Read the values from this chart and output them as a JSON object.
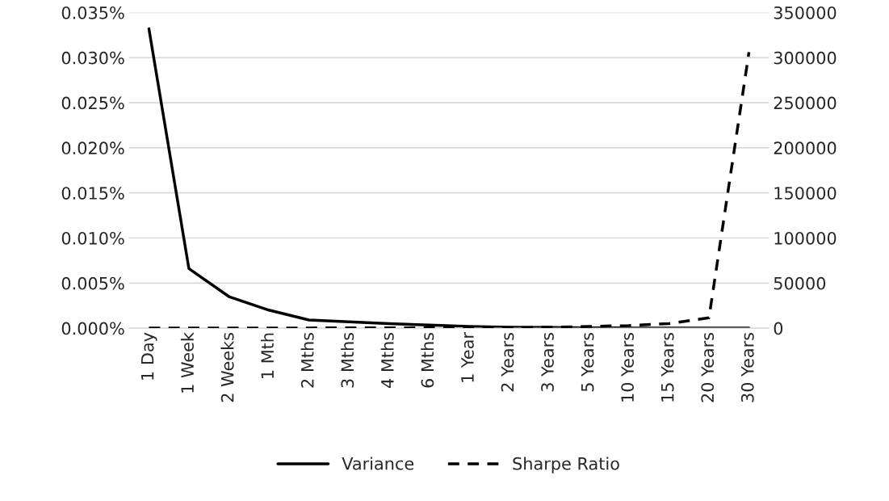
{
  "chart_data": {
    "type": "line",
    "categories": [
      "1 Day",
      "1 Week",
      "2 Weeks",
      "1 Mth",
      "2 Mths",
      "3 Mths",
      "4 Mths",
      "6 Mths",
      "1 Year",
      "2 Years",
      "3 Years",
      "5 Years",
      "10 Years",
      "15 Years",
      "20 Years",
      "30 Years"
    ],
    "series": [
      {
        "name": "Variance",
        "color": "#000000",
        "line_style": "solid",
        "values": [
          0.0332,
          0.0066,
          0.0035,
          0.002,
          0.0009,
          0.0007,
          0.0005,
          0.00035,
          0.0002,
          0.0001,
          7e-05,
          4e-05,
          2e-05,
          1e-05,
          1e-05,
          1e-05
        ]
      },
      {
        "name": "Sharpe Ratio",
        "color": "#000000",
        "line_style": "dashed",
        "axis": "y2",
        "values": [
          0,
          100,
          100,
          200,
          200,
          300,
          300,
          300,
          400,
          500,
          1000,
          1900,
          2900,
          5100,
          11500,
          306000
        ]
      }
    ],
    "ylim": [
      0,
      0.035
    ],
    "yticks": [
      {
        "value": 0,
        "label": "0.000%"
      },
      {
        "value": 0.005,
        "label": "0.005%"
      },
      {
        "value": 0.01,
        "label": "0.010%"
      },
      {
        "value": 0.015,
        "label": "0.015%"
      },
      {
        "value": 0.02,
        "label": "0.020%"
      },
      {
        "value": 0.025,
        "label": "0.025%"
      },
      {
        "value": 0.03,
        "label": "0.030%"
      },
      {
        "value": 0.035,
        "label": "0.035%"
      }
    ],
    "y2lim": [
      0,
      350000
    ],
    "y2ticks": [
      0,
      50000,
      100000,
      150000,
      200000,
      250000,
      300000,
      350000
    ],
    "grid": "y",
    "legend": "bottom",
    "marker": "none"
  }
}
